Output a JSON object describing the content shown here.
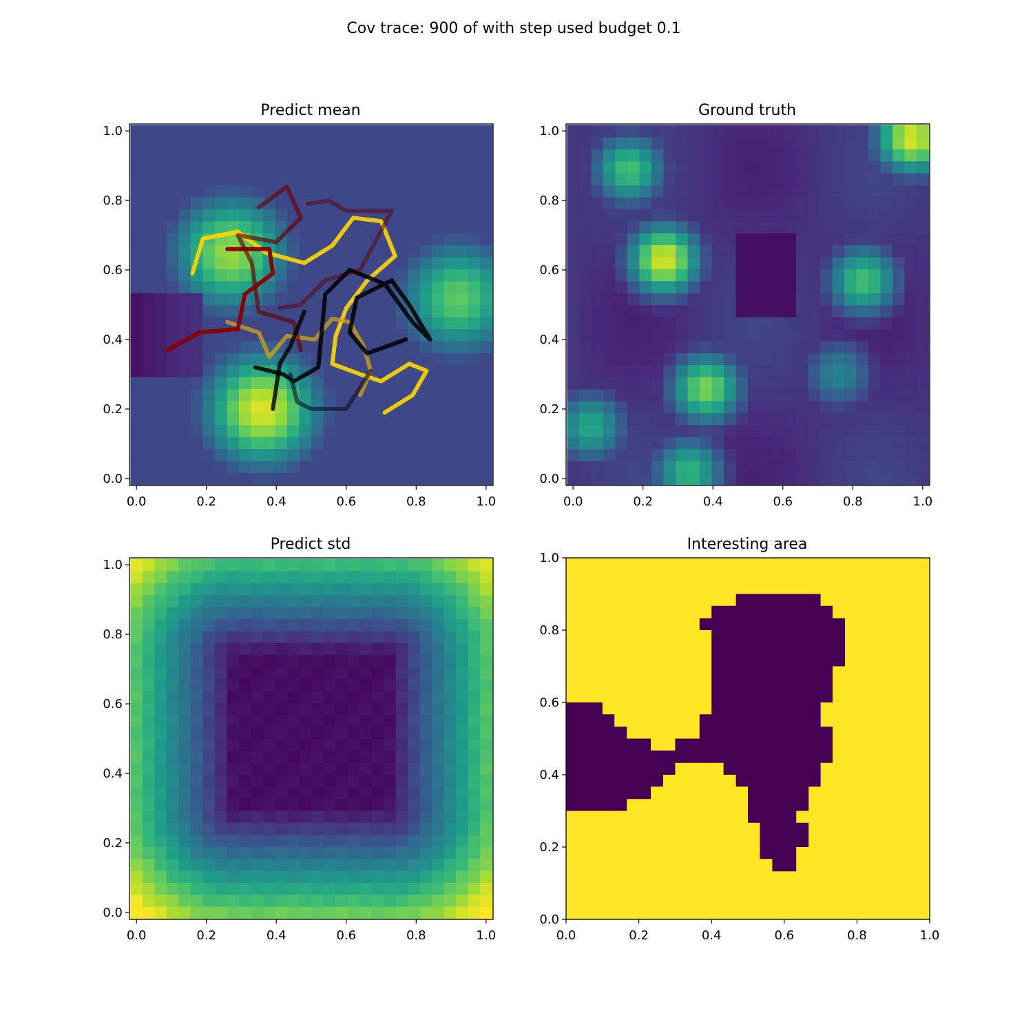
{
  "figure": {
    "suptitle": "Cov trace: 900 of with step used budget 0.1"
  },
  "chart_data": [
    {
      "type": "heatmap",
      "title": "Predict mean",
      "xlim": [
        -0.02,
        1.02
      ],
      "ylim": [
        -0.02,
        1.02
      ],
      "xticks": [
        "0.0",
        "0.2",
        "0.4",
        "0.6",
        "0.8",
        "1.0"
      ],
      "yticks": [
        "0.0",
        "0.2",
        "0.4",
        "0.6",
        "0.8",
        "1.0"
      ],
      "grid": "30x30 cells, viridis colormap",
      "colormap": "viridis",
      "hotspots": [
        {
          "x": 0.27,
          "y": 0.65,
          "value": 0.85
        },
        {
          "x": 0.36,
          "y": 0.2,
          "value": 0.95
        },
        {
          "x": 0.92,
          "y": 0.52,
          "value": 0.75
        },
        {
          "x": 0.55,
          "y": 0.9,
          "value": 0.1
        }
      ],
      "paths": [
        {
          "color": "#ffd700",
          "opacity": 0.9,
          "points": [
            [
              0.16,
              0.59
            ],
            [
              0.19,
              0.69
            ],
            [
              0.29,
              0.71
            ],
            [
              0.37,
              0.65
            ],
            [
              0.48,
              0.62
            ],
            [
              0.56,
              0.67
            ],
            [
              0.62,
              0.75
            ],
            [
              0.7,
              0.74
            ],
            [
              0.74,
              0.64
            ],
            [
              0.66,
              0.57
            ],
            [
              0.6,
              0.49
            ],
            [
              0.57,
              0.41
            ],
            [
              0.56,
              0.33
            ],
            [
              0.64,
              0.3
            ],
            [
              0.7,
              0.28
            ],
            [
              0.78,
              0.33
            ],
            [
              0.83,
              0.31
            ],
            [
              0.79,
              0.24
            ],
            [
              0.71,
              0.19
            ]
          ]
        },
        {
          "color": "#d4a017",
          "opacity": 0.75,
          "points": [
            [
              0.26,
              0.45
            ],
            [
              0.35,
              0.42
            ],
            [
              0.38,
              0.35
            ],
            [
              0.43,
              0.41
            ],
            [
              0.51,
              0.4
            ],
            [
              0.56,
              0.46
            ],
            [
              0.61,
              0.45
            ],
            [
              0.65,
              0.38
            ],
            [
              0.67,
              0.31
            ],
            [
              0.64,
              0.24
            ]
          ]
        },
        {
          "color": "#8b0000",
          "opacity": 0.95,
          "points": [
            [
              0.09,
              0.37
            ],
            [
              0.18,
              0.42
            ],
            [
              0.29,
              0.43
            ],
            [
              0.31,
              0.53
            ],
            [
              0.39,
              0.59
            ],
            [
              0.38,
              0.66
            ],
            [
              0.26,
              0.66
            ]
          ]
        },
        {
          "color": "#6b0000",
          "opacity": 0.65,
          "points": [
            [
              0.35,
              0.78
            ],
            [
              0.43,
              0.84
            ],
            [
              0.47,
              0.75
            ],
            [
              0.4,
              0.68
            ],
            [
              0.29,
              0.7
            ],
            [
              0.33,
              0.62
            ],
            [
              0.35,
              0.48
            ],
            [
              0.45,
              0.45
            ],
            [
              0.47,
              0.37
            ]
          ]
        },
        {
          "color": "#5a0a10",
          "opacity": 0.55,
          "points": [
            [
              0.49,
              0.79
            ],
            [
              0.55,
              0.8
            ],
            [
              0.6,
              0.77
            ],
            [
              0.73,
              0.77
            ],
            [
              0.64,
              0.6
            ],
            [
              0.54,
              0.57
            ],
            [
              0.47,
              0.5
            ],
            [
              0.41,
              0.49
            ]
          ]
        },
        {
          "color": "#000000",
          "opacity": 0.85,
          "points": [
            [
              0.34,
              0.32
            ],
            [
              0.42,
              0.3
            ],
            [
              0.45,
              0.28
            ],
            [
              0.52,
              0.32
            ],
            [
              0.54,
              0.53
            ],
            [
              0.61,
              0.6
            ],
            [
              0.71,
              0.56
            ],
            [
              0.79,
              0.45
            ],
            [
              0.84,
              0.4
            ],
            [
              0.78,
              0.5
            ],
            [
              0.73,
              0.57
            ],
            [
              0.63,
              0.52
            ],
            [
              0.61,
              0.42
            ],
            [
              0.66,
              0.36
            ],
            [
              0.77,
              0.4
            ]
          ]
        },
        {
          "color": "#111122",
          "opacity": 0.6,
          "points": [
            [
              0.44,
              0.3
            ],
            [
              0.46,
              0.22
            ],
            [
              0.5,
              0.2
            ],
            [
              0.6,
              0.2
            ],
            [
              0.67,
              0.31
            ]
          ]
        },
        {
          "color": "#000000",
          "opacity": 0.8,
          "points": [
            [
              0.39,
              0.2
            ],
            [
              0.41,
              0.33
            ],
            [
              0.44,
              0.38
            ],
            [
              0.48,
              0.48
            ]
          ]
        }
      ]
    },
    {
      "type": "heatmap",
      "title": "Ground truth",
      "xlim": [
        -0.02,
        1.02
      ],
      "ylim": [
        -0.02,
        1.02
      ],
      "xticks": [
        "0.0",
        "0.2",
        "0.4",
        "0.6",
        "0.8",
        "1.0"
      ],
      "yticks": [
        "0.0",
        "0.2",
        "0.4",
        "0.6",
        "0.8",
        "1.0"
      ],
      "grid": "30x30 cells, viridis colormap",
      "colormap": "viridis",
      "hotspots": [
        {
          "x": 0.26,
          "y": 0.63,
          "value": 0.95
        },
        {
          "x": 0.16,
          "y": 0.89,
          "value": 0.7
        },
        {
          "x": 0.38,
          "y": 0.26,
          "value": 0.8
        },
        {
          "x": 0.83,
          "y": 0.57,
          "value": 0.7
        },
        {
          "x": 0.97,
          "y": 0.98,
          "value": 0.95
        },
        {
          "x": 0.05,
          "y": 0.15,
          "value": 0.6
        },
        {
          "x": 0.33,
          "y": 0.02,
          "value": 0.65
        },
        {
          "x": 0.76,
          "y": 0.3,
          "value": 0.45
        }
      ]
    },
    {
      "type": "heatmap",
      "title": "Predict std",
      "xlim": [
        -0.02,
        1.02
      ],
      "ylim": [
        -0.02,
        1.02
      ],
      "xticks": [
        "0.0",
        "0.2",
        "0.4",
        "0.6",
        "0.8",
        "1.0"
      ],
      "yticks": [
        "0.0",
        "0.2",
        "0.4",
        "0.6",
        "0.8",
        "1.0"
      ],
      "grid": "30x30 cells, viridis colormap",
      "colormap": "viridis",
      "description_values": {
        "center": 0.02,
        "edges": 0.5,
        "corners": 0.75
      }
    },
    {
      "type": "heatmap",
      "title": "Interesting area",
      "xlim": [
        0.0,
        1.0
      ],
      "ylim": [
        0.0,
        1.0
      ],
      "xticks": [
        "0.0",
        "0.2",
        "0.4",
        "0.6",
        "0.8",
        "1.0"
      ],
      "yticks": [
        "0.0",
        "0.2",
        "0.4",
        "0.6",
        "0.8",
        "1.0"
      ],
      "grid": "30x30 binary mask",
      "colors": {
        "inside": "#440154",
        "outside": "#fde725"
      },
      "region_outline": [
        [
          0.0,
          0.6
        ],
        [
          0.1,
          0.6
        ],
        [
          0.1,
          0.567
        ],
        [
          0.133,
          0.567
        ],
        [
          0.133,
          0.533
        ],
        [
          0.167,
          0.533
        ],
        [
          0.167,
          0.5
        ],
        [
          0.233,
          0.5
        ],
        [
          0.233,
          0.467
        ],
        [
          0.3,
          0.467
        ],
        [
          0.3,
          0.5
        ],
        [
          0.367,
          0.5
        ],
        [
          0.367,
          0.567
        ],
        [
          0.4,
          0.567
        ],
        [
          0.4,
          0.8
        ],
        [
          0.367,
          0.8
        ],
        [
          0.367,
          0.833
        ],
        [
          0.4,
          0.833
        ],
        [
          0.4,
          0.867
        ],
        [
          0.467,
          0.867
        ],
        [
          0.467,
          0.9
        ],
        [
          0.7,
          0.9
        ],
        [
          0.7,
          0.867
        ],
        [
          0.733,
          0.867
        ],
        [
          0.733,
          0.833
        ],
        [
          0.767,
          0.833
        ],
        [
          0.767,
          0.7
        ],
        [
          0.733,
          0.7
        ],
        [
          0.733,
          0.6
        ],
        [
          0.7,
          0.6
        ],
        [
          0.7,
          0.533
        ],
        [
          0.733,
          0.533
        ],
        [
          0.733,
          0.433
        ],
        [
          0.7,
          0.433
        ],
        [
          0.7,
          0.367
        ],
        [
          0.667,
          0.367
        ],
        [
          0.667,
          0.3
        ],
        [
          0.633,
          0.3
        ],
        [
          0.633,
          0.267
        ],
        [
          0.667,
          0.267
        ],
        [
          0.667,
          0.2
        ],
        [
          0.633,
          0.2
        ],
        [
          0.633,
          0.133
        ],
        [
          0.567,
          0.133
        ],
        [
          0.567,
          0.167
        ],
        [
          0.533,
          0.167
        ],
        [
          0.533,
          0.267
        ],
        [
          0.5,
          0.267
        ],
        [
          0.5,
          0.367
        ],
        [
          0.467,
          0.367
        ],
        [
          0.467,
          0.4
        ],
        [
          0.433,
          0.4
        ],
        [
          0.433,
          0.433
        ],
        [
          0.3,
          0.433
        ],
        [
          0.3,
          0.4
        ],
        [
          0.267,
          0.4
        ],
        [
          0.267,
          0.367
        ],
        [
          0.233,
          0.367
        ],
        [
          0.233,
          0.333
        ],
        [
          0.167,
          0.333
        ],
        [
          0.167,
          0.3
        ],
        [
          0.0,
          0.3
        ]
      ]
    }
  ]
}
